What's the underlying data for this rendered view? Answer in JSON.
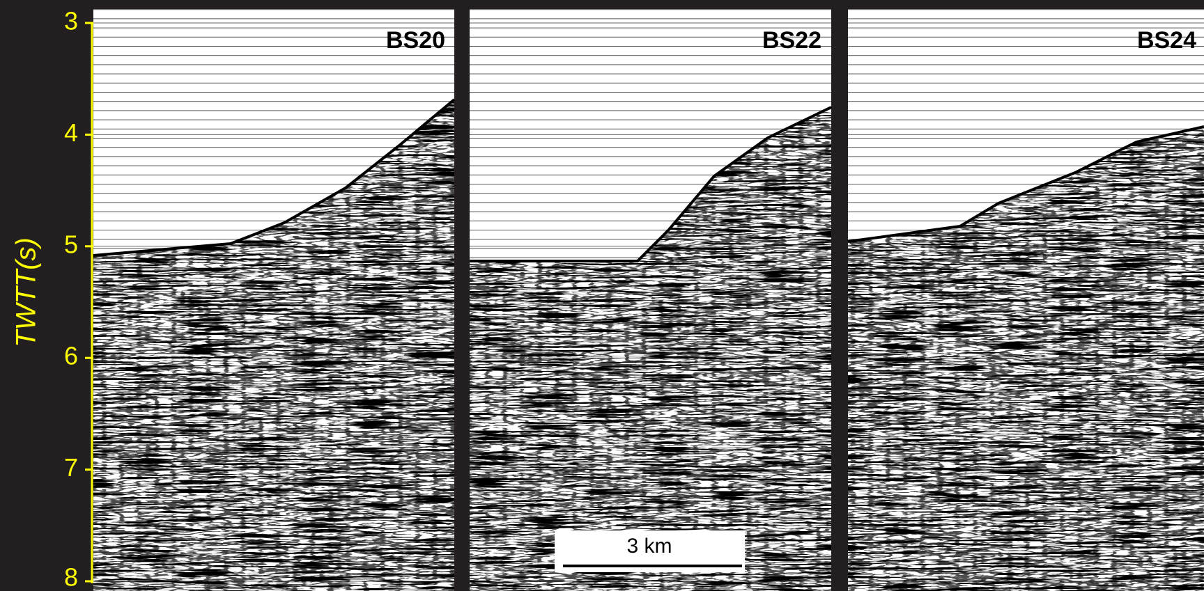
{
  "axis": {
    "label": "TWTT(s)",
    "ylim": [
      3,
      8
    ],
    "yticks": [
      3,
      4,
      5,
      6,
      7,
      8
    ]
  },
  "panels": [
    {
      "label": "BS20"
    },
    {
      "label": "BS22"
    },
    {
      "label": "BS24"
    }
  ],
  "scale_bar": {
    "label": "3 km"
  }
}
